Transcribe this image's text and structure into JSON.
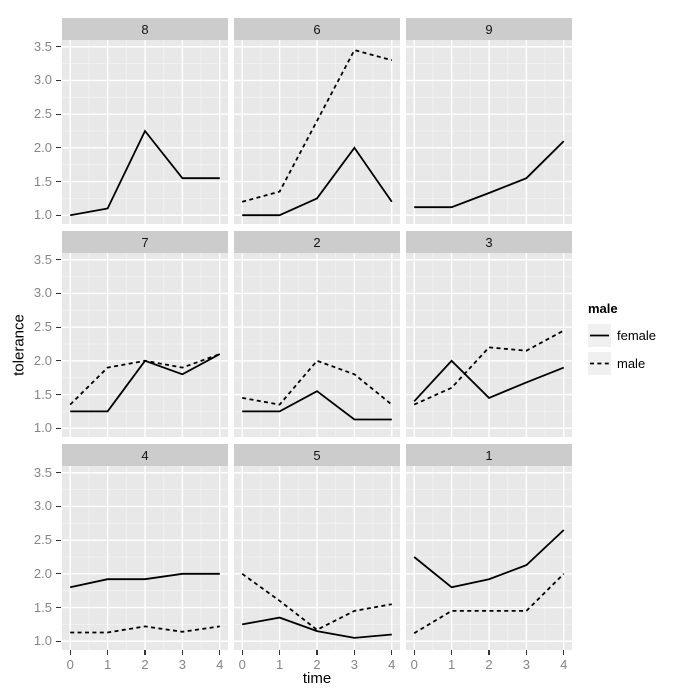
{
  "chart_data": {
    "type": "line",
    "xlabel": "time",
    "ylabel": "tolerance",
    "x": [
      0,
      1,
      2,
      3,
      4
    ],
    "xlim": [
      -0.22,
      4.22
    ],
    "ylim": [
      0.87,
      3.6
    ],
    "x_ticks": [
      0,
      1,
      2,
      3,
      4
    ],
    "y_ticks": [
      1.0,
      1.5,
      2.0,
      2.5,
      3.0,
      3.5
    ],
    "x_minor": [
      0.5,
      1.5,
      2.5,
      3.5
    ],
    "y_minor": [
      1.25,
      1.75,
      2.25,
      2.75,
      3.25
    ],
    "x_tick_labels": [
      "0",
      "1",
      "2",
      "3",
      "4"
    ],
    "y_tick_labels": [
      "1.0",
      "1.5",
      "2.0",
      "2.5",
      "3.0",
      "3.5"
    ],
    "grid": true,
    "facet_layout": [
      [
        "8",
        "6",
        "9"
      ],
      [
        "7",
        "2",
        "3"
      ],
      [
        "4",
        "5",
        "1"
      ]
    ],
    "legend": {
      "title": "male",
      "position": "right",
      "entries": [
        {
          "label": "female",
          "linetype": "solid"
        },
        {
          "label": "male",
          "linetype": "dashed"
        }
      ]
    },
    "panels": [
      {
        "label": "8",
        "series": [
          {
            "name": "female",
            "linetype": "solid",
            "values": [
              1.0,
              1.1,
              2.25,
              1.55,
              1.55
            ]
          }
        ]
      },
      {
        "label": "6",
        "series": [
          {
            "name": "female",
            "linetype": "solid",
            "values": [
              1.0,
              1.0,
              1.25,
              2.0,
              1.2
            ]
          },
          {
            "name": "male",
            "linetype": "dashed",
            "values": [
              1.2,
              1.35,
              2.4,
              3.45,
              3.3
            ]
          }
        ]
      },
      {
        "label": "9",
        "series": [
          {
            "name": "female",
            "linetype": "solid",
            "values": [
              1.12,
              1.12,
              1.33,
              1.55,
              2.1
            ]
          }
        ]
      },
      {
        "label": "7",
        "series": [
          {
            "name": "female",
            "linetype": "solid",
            "values": [
              1.25,
              1.25,
              2.0,
              1.8,
              2.1
            ]
          },
          {
            "name": "male",
            "linetype": "dashed",
            "values": [
              1.35,
              1.9,
              2.0,
              1.9,
              2.1
            ]
          }
        ]
      },
      {
        "label": "2",
        "series": [
          {
            "name": "female",
            "linetype": "solid",
            "values": [
              1.25,
              1.25,
              1.55,
              1.13,
              1.13
            ]
          },
          {
            "name": "male",
            "linetype": "dashed",
            "values": [
              1.45,
              1.35,
              2.0,
              1.8,
              1.35
            ]
          }
        ]
      },
      {
        "label": "3",
        "series": [
          {
            "name": "female",
            "linetype": "solid",
            "values": [
              1.4,
              2.0,
              1.45,
              1.68,
              1.9
            ]
          },
          {
            "name": "male",
            "linetype": "dashed",
            "values": [
              1.35,
              1.6,
              2.2,
              2.15,
              2.45
            ]
          }
        ]
      },
      {
        "label": "4",
        "series": [
          {
            "name": "female",
            "linetype": "solid",
            "values": [
              1.8,
              1.92,
              1.92,
              2.0,
              2.0
            ]
          },
          {
            "name": "male",
            "linetype": "dashed",
            "values": [
              1.13,
              1.13,
              1.22,
              1.14,
              1.22
            ]
          }
        ]
      },
      {
        "label": "5",
        "series": [
          {
            "name": "female",
            "linetype": "solid",
            "values": [
              1.25,
              1.35,
              1.15,
              1.05,
              1.1
            ]
          },
          {
            "name": "male",
            "linetype": "dashed",
            "values": [
              2.0,
              1.6,
              1.17,
              1.45,
              1.55
            ]
          }
        ]
      },
      {
        "label": "1",
        "series": [
          {
            "name": "female",
            "linetype": "solid",
            "values": [
              2.25,
              1.8,
              1.92,
              2.13,
              2.65
            ]
          },
          {
            "name": "male",
            "linetype": "dashed",
            "values": [
              1.12,
              1.45,
              1.45,
              1.45,
              2.0
            ]
          }
        ]
      }
    ]
  },
  "colors": {
    "panel_background": "#e8e8e8",
    "strip_background": "#cccccc",
    "grid_major": "#ffffff",
    "grid_minor": "#f2f2f2",
    "tick_text": "#858585",
    "line": "#000000",
    "legend_key_background": "#f0f0f0"
  }
}
